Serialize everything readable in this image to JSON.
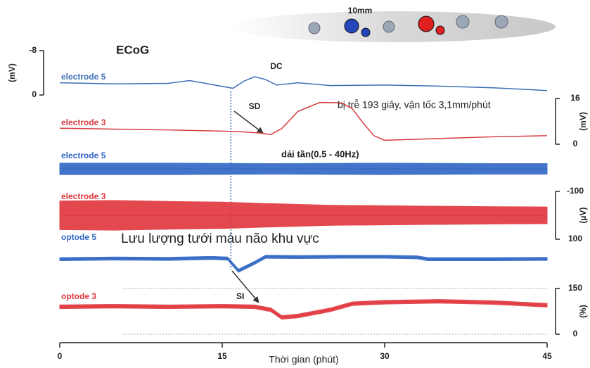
{
  "annotations": {
    "scale": "10mm",
    "dc": "DC",
    "sd": "SD",
    "delay": "bị trễ 193 giây, vận tốc 3,1mm/phút",
    "band": "dải tần(0.5 - 40Hz)",
    "cbf": "Lưu lượng tưới máu não khu vực",
    "si": "SI"
  },
  "event_x": 15.8,
  "chart_data": [
    {
      "type": "line",
      "title": "ECoG",
      "xlim": [
        0,
        45
      ],
      "ylim": [
        0,
        -8
      ],
      "yticks": [
        -8,
        0
      ],
      "y_label": "(mV)",
      "yaxis": "left",
      "series": [
        {
          "name": "electrode 5",
          "color": "#3f6fb8",
          "x": [
            0,
            5,
            10,
            12,
            14,
            16,
            17,
            18,
            19,
            20,
            22,
            25,
            30,
            35,
            40,
            45
          ],
          "values": [
            -2.2,
            -2.0,
            -2.1,
            -2.6,
            -1.9,
            -1.2,
            -2.5,
            -3.3,
            -2.8,
            -1.8,
            -2.2,
            -1.7,
            -1.8,
            -1.6,
            -1.3,
            -0.8
          ]
        }
      ]
    },
    {
      "type": "line",
      "xlim": [
        0,
        45
      ],
      "ylim": [
        0,
        16
      ],
      "yticks": [
        16,
        0
      ],
      "y_label": "(mV)",
      "yaxis": "right",
      "series": [
        {
          "name": "electrode 3",
          "color": "#d43a3f",
          "x": [
            0,
            5,
            10,
            15,
            17,
            18.5,
            19.5,
            20.5,
            22,
            24,
            26,
            27,
            28,
            29,
            30,
            35,
            40,
            45
          ],
          "values": [
            5.6,
            5.3,
            5,
            4.6,
            4.3,
            3.9,
            3.4,
            5.5,
            11.5,
            14.6,
            14.5,
            12.5,
            7.5,
            3,
            1.4,
            2,
            2.6,
            3
          ]
        }
      ]
    },
    {
      "type": "band",
      "xlim": [
        0,
        45
      ],
      "ylim": [
        100,
        -100
      ],
      "series": [
        {
          "name": "electrode 5",
          "color": "#2f66c4",
          "x": [
            0,
            10,
            20,
            30,
            40,
            45
          ],
          "values": [
            0,
            0,
            0,
            0,
            0,
            0
          ],
          "envelope": [
            24,
            24,
            22,
            24,
            22,
            22
          ]
        }
      ]
    },
    {
      "type": "band",
      "xlim": [
        0,
        45
      ],
      "ylim": [
        100,
        -100
      ],
      "yticks": [
        -100,
        100
      ],
      "y_label": "(µV)",
      "yaxis": "right",
      "series": [
        {
          "name": "electrode 3",
          "color": "#e0353c",
          "x": [
            0,
            5,
            10,
            15,
            20,
            25,
            30,
            35,
            40,
            45
          ],
          "values": [
            0,
            0,
            0,
            0,
            0,
            0,
            0,
            0,
            0,
            0
          ],
          "envelope": [
            60,
            62,
            58,
            55,
            48,
            42,
            40,
            38,
            36,
            35
          ]
        }
      ]
    },
    {
      "type": "band",
      "xlim": [
        0,
        45
      ],
      "ylim": [
        0,
        150
      ],
      "series": [
        {
          "name": "optode 5",
          "color": "#2f66c4",
          "x": [
            0,
            5,
            10,
            14,
            15.5,
            16.5,
            18,
            19,
            22,
            26,
            30,
            33,
            34,
            40,
            45
          ],
          "values": [
            80,
            82,
            81,
            84,
            82,
            42,
            68,
            88,
            87,
            88,
            88,
            86,
            80,
            80,
            81
          ],
          "envelope": [
            5,
            5,
            5,
            5,
            5,
            5,
            5,
            5,
            5,
            5,
            5,
            5,
            5,
            5,
            5
          ]
        }
      ]
    },
    {
      "type": "band",
      "xlim": [
        0,
        45
      ],
      "ylim": [
        0,
        150
      ],
      "yticks": [
        150,
        0
      ],
      "y_label": "(%)",
      "yaxis": "right",
      "grid": true,
      "xticks": [
        0,
        15,
        30,
        45
      ],
      "x_label": "Thời gian (phút)",
      "series": [
        {
          "name": "optode 3",
          "color": "#e0353c",
          "x": [
            0,
            5,
            10,
            15,
            18,
            19.5,
            20.5,
            22,
            25,
            27,
            30,
            35,
            40,
            45
          ],
          "values": [
            90,
            92,
            90,
            92,
            90,
            80,
            55,
            60,
            80,
            100,
            105,
            108,
            104,
            95
          ],
          "envelope": [
            6,
            6,
            6,
            6,
            6,
            6,
            6,
            6,
            6,
            6,
            6,
            6,
            6,
            6
          ]
        }
      ]
    }
  ]
}
